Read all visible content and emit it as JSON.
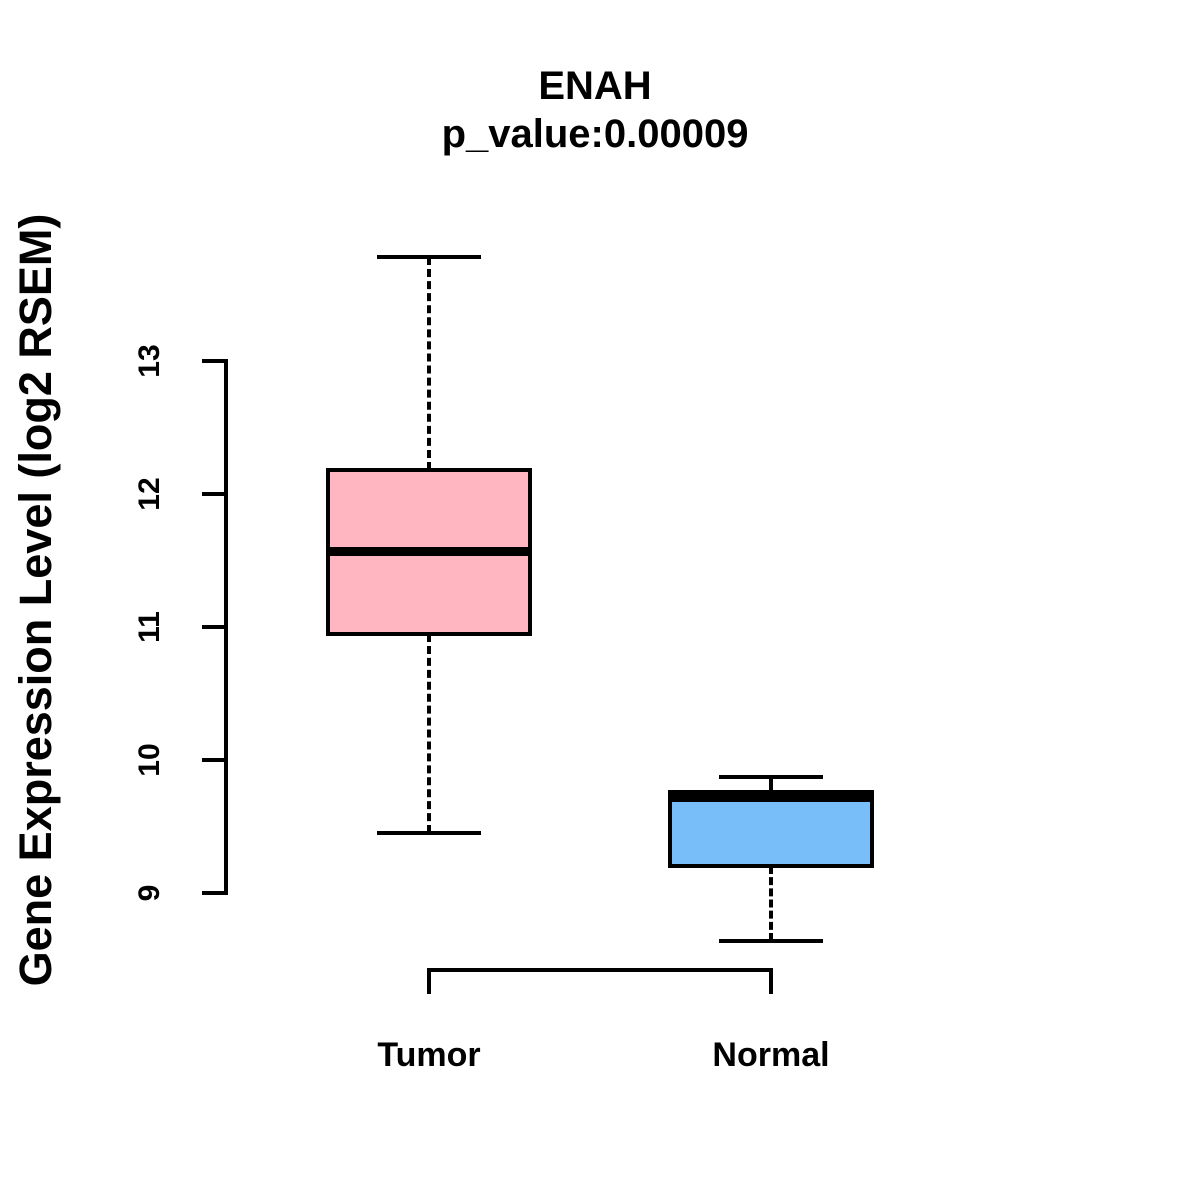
{
  "chart_data": {
    "type": "boxplot",
    "title": "ENAH",
    "subtitle": "p_value:0.00009",
    "ylabel": "Gene Expression Level (log2 RSEM)",
    "xlabel": "",
    "categories": [
      "Tumor",
      "Normal"
    ],
    "yticks": [
      9,
      10,
      11,
      12,
      13
    ],
    "ylim": [
      8.5,
      13.9
    ],
    "grid": false,
    "legend": "none",
    "boxes": [
      {
        "category": "Tumor",
        "fill_color": "#FFB6C1",
        "lower_whisker": 9.45,
        "q1": 10.95,
        "median": 11.57,
        "q3": 12.18,
        "upper_whisker": 13.78
      },
      {
        "category": "Normal",
        "fill_color": "#78BEF8",
        "lower_whisker": 8.64,
        "q1": 9.2,
        "median": 9.72,
        "q3": 9.76,
        "upper_whisker": 9.87
      }
    ],
    "colors": {
      "stroke": "#000000",
      "background": "#FFFFFF",
      "tumor_fill": "#FFB6C1",
      "normal_fill": "#78BEF8"
    }
  }
}
